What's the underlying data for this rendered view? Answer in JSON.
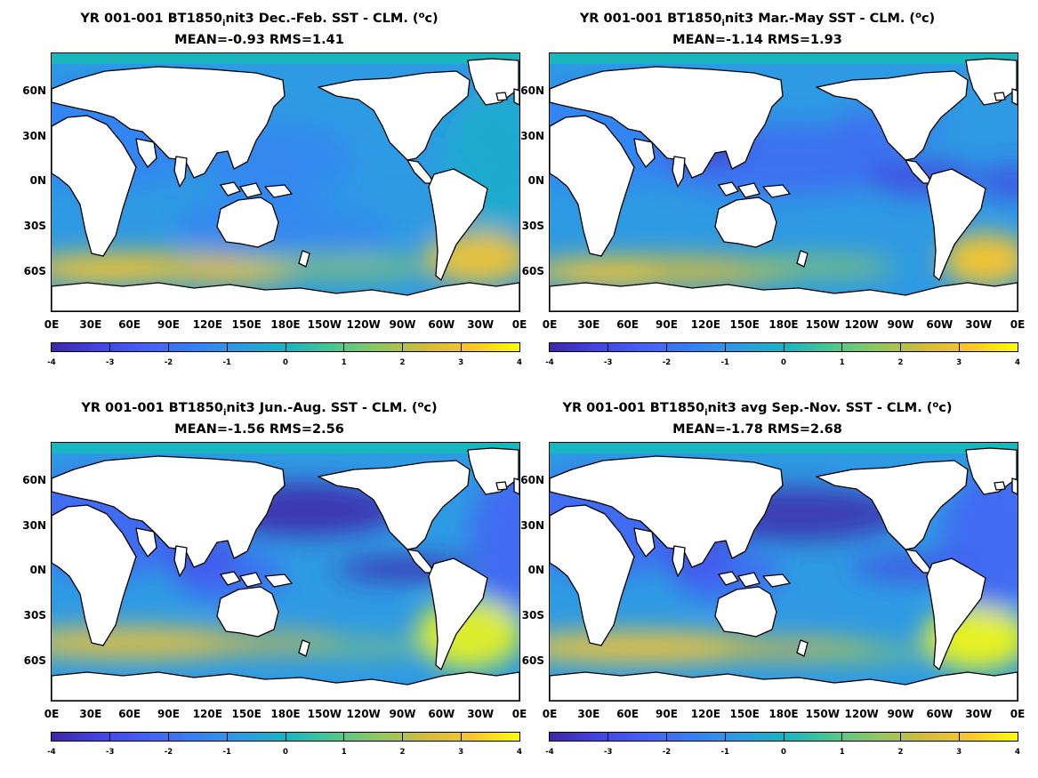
{
  "colors": {
    "land": "#ffffff",
    "arctic_ice": "#1ab6bf",
    "coast": "#000000",
    "colormap": [
      "#3e26a8",
      "#4443e4",
      "#4460f5",
      "#357ff5",
      "#2e9ae4",
      "#17b4c2",
      "#48c792",
      "#8fc85f",
      "#d3bb3a",
      "#fbc62c",
      "#f9fb0e"
    ]
  },
  "x_ticks": [
    "0E",
    "30E",
    "60E",
    "90E",
    "120E",
    "150E",
    "180E",
    "150W",
    "120W",
    "90W",
    "60W",
    "30W",
    "0E"
  ],
  "y_ticks": [
    "60N",
    "30N",
    "0N",
    "30S",
    "60S"
  ],
  "colorbar_ticks": [
    "-4",
    "-3",
    "-2",
    "-1",
    "0",
    "1",
    "2",
    "3",
    "4"
  ],
  "panels": [
    {
      "title_a": "YR 001-001 BT1850",
      "title_sub": "i",
      "title_b": "nit3  Dec.-Feb. SST - CLM. (",
      "title_sup": "o",
      "title_c": "c)",
      "stats": "MEAN=-0.93   RMS=1.41"
    },
    {
      "title_a": "YR 001-001 BT1850",
      "title_sub": "i",
      "title_b": "nit3 Mar.-May SST - CLM. (",
      "title_sup": "o",
      "title_c": "c)",
      "stats": "MEAN=-1.14   RMS=1.93"
    },
    {
      "title_a": "YR 001-001 BT1850",
      "title_sub": "i",
      "title_b": "nit3 Jun.-Aug. SST - CLM. (",
      "title_sup": "o",
      "title_c": "c)",
      "stats": "MEAN=-1.56   RMS=2.56"
    },
    {
      "title_a": "YR 001-001 BT1850",
      "title_sub": "i",
      "title_b": "nit3 avg Sep.-Nov. SST - CLM. (",
      "title_sup": "o",
      "title_c": "c)",
      "stats": "MEAN=-1.78   RMS=2.68"
    }
  ],
  "chart_data": [
    {
      "type": "heatmap",
      "title": "YR 001-001 BT1850init3  Dec.-Feb. SST - CLM. (oc)",
      "subtitle": "MEAN=-0.93   RMS=1.41",
      "colorbar_range": [
        -4,
        4
      ],
      "mean": -0.93,
      "rms": 1.41
    },
    {
      "type": "heatmap",
      "title": "YR 001-001 BT1850init3 Mar.-May SST - CLM. (oc)",
      "subtitle": "MEAN=-1.14   RMS=1.93",
      "colorbar_range": [
        -4,
        4
      ],
      "mean": -1.14,
      "rms": 1.93
    },
    {
      "type": "heatmap",
      "title": "YR 001-001 BT1850init3 Jun.-Aug. SST - CLM. (oc)",
      "subtitle": "MEAN=-1.56   RMS=2.56",
      "colorbar_range": [
        -4,
        4
      ],
      "mean": -1.56,
      "rms": 2.56
    },
    {
      "type": "heatmap",
      "title": "YR 001-001 BT1850init3 avg Sep.-Nov. SST - CLM. (oc)",
      "subtitle": "MEAN=-1.78   RMS=2.68",
      "colorbar_range": [
        -4,
        4
      ],
      "mean": -1.78,
      "rms": 2.68
    }
  ]
}
